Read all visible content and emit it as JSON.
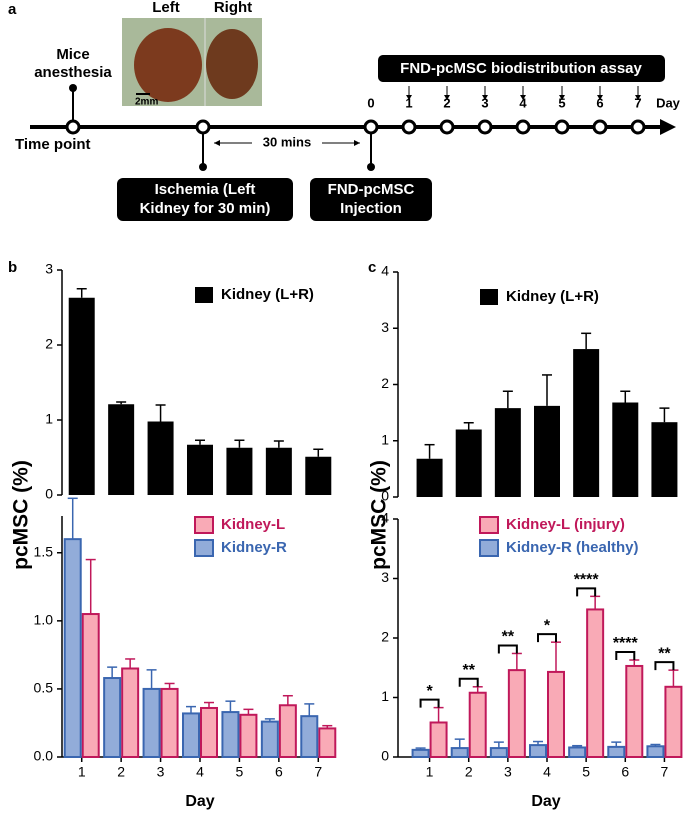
{
  "panel_a": {
    "label": "a",
    "photo_labels": [
      "Left",
      "Right"
    ],
    "scale_bar": "2mm",
    "anesthesia": [
      "Mice",
      "anesthesia"
    ],
    "timeline_label": "Time point",
    "interval": "30 mins",
    "ischemia": [
      "Ischemia (Left",
      "Kidney for 30 min)"
    ],
    "injection": [
      "FND-pcMSC",
      "Injection"
    ],
    "assay": "FND-pcMSC biodistribution assay",
    "days": [
      "0",
      "1",
      "2",
      "3",
      "4",
      "5",
      "6",
      "7"
    ],
    "day_unit": "Day"
  },
  "panel_b": {
    "label": "b",
    "ylabel": "pcMSC (%)",
    "xlabel": "Day"
  },
  "panel_c": {
    "label": "c",
    "ylabel": "pcMSC (%)",
    "xlabel": "Day"
  },
  "chart_data": [
    {
      "type": "bar",
      "ylim": [
        0,
        3
      ],
      "yticks": [
        0,
        1,
        2,
        3
      ],
      "series": [
        {
          "name": "Kidney (L+R)",
          "color": "#000000",
          "edge": "#000000",
          "values": [
            2.63,
            1.21,
            0.98,
            0.67,
            0.63,
            0.63,
            0.51
          ],
          "errors": [
            0.12,
            0.03,
            0.22,
            0.06,
            0.1,
            0.09,
            0.1
          ]
        }
      ]
    },
    {
      "type": "bar",
      "ylim": [
        0,
        1.77
      ],
      "yticks": [
        {
          "value": 0,
          "label": "0.0"
        },
        0.5,
        {
          "value": 1,
          "label": "1.0"
        },
        1.5
      ],
      "categories": [
        "1",
        "2",
        "3",
        "4",
        "5",
        "6",
        "7"
      ],
      "series": [
        {
          "name": "Kidney-L",
          "color": "#f9aab6",
          "edge": "#c0185a",
          "values": [
            1.05,
            0.65,
            0.5,
            0.36,
            0.31,
            0.38,
            0.21
          ],
          "errors": [
            0.4,
            0.07,
            0.04,
            0.04,
            0.04,
            0.07,
            0.02
          ]
        },
        {
          "name": "Kidney-R",
          "color": "#92acd9",
          "edge": "#3a66b0",
          "values": [
            1.6,
            0.58,
            0.5,
            0.32,
            0.33,
            0.26,
            0.3
          ],
          "errors": [
            0.3,
            0.08,
            0.14,
            0.05,
            0.08,
            0.02,
            0.09
          ]
        }
      ]
    },
    {
      "type": "bar",
      "ylim": [
        0,
        4
      ],
      "yticks": [
        0,
        1,
        2,
        3,
        4
      ],
      "series": [
        {
          "name": "Kidney (L+R)",
          "color": "#000000",
          "edge": "#000000",
          "values": [
            0.68,
            1.2,
            1.58,
            1.62,
            2.63,
            1.68,
            1.33
          ],
          "errors": [
            0.25,
            0.12,
            0.3,
            0.55,
            0.28,
            0.2,
            0.25
          ]
        }
      ]
    },
    {
      "type": "bar",
      "ylim": [
        0,
        4
      ],
      "yticks": [
        0,
        1,
        2,
        3,
        4
      ],
      "categories": [
        "1",
        "2",
        "3",
        "4",
        "5",
        "6",
        "7"
      ],
      "series": [
        {
          "name": "Kidney-L (injury)",
          "color": "#f9aab6",
          "edge": "#c0185a",
          "values": [
            0.58,
            1.08,
            1.46,
            1.43,
            2.48,
            1.53,
            1.18
          ],
          "errors": [
            0.25,
            0.1,
            0.28,
            0.5,
            0.22,
            0.1,
            0.28
          ]
        },
        {
          "name": "Kidney-R (healthy)",
          "color": "#92acd9",
          "edge": "#3a66b0",
          "values": [
            0.12,
            0.15,
            0.15,
            0.2,
            0.16,
            0.17,
            0.18
          ],
          "errors": [
            0.03,
            0.15,
            0.1,
            0.06,
            0.03,
            0.08,
            0.03
          ]
        }
      ],
      "annotations": [
        "*",
        "**",
        "**",
        "*",
        "****",
        "****",
        "**"
      ]
    }
  ]
}
